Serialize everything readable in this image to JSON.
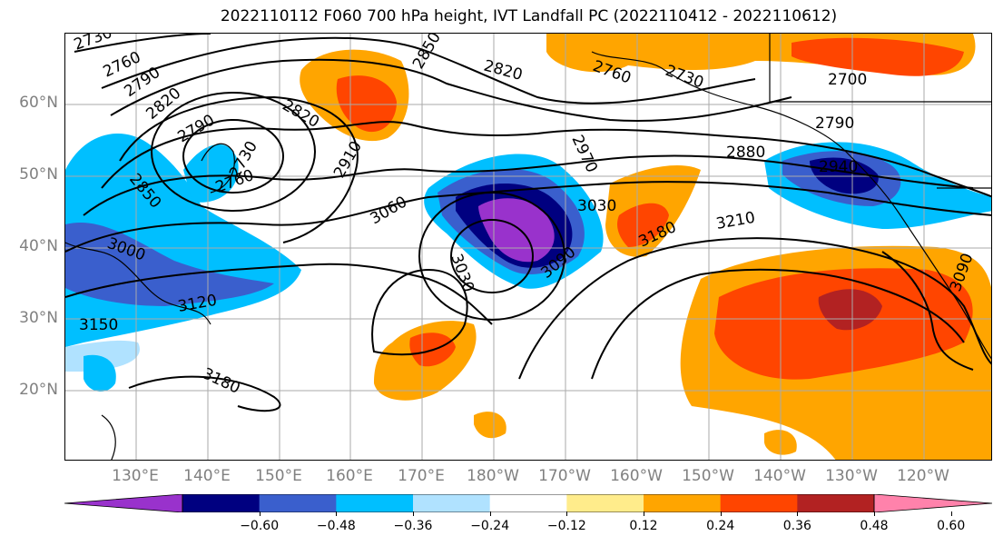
{
  "title": "2022110112 F060 700 hPa height, IVT Landfall PC (2022110412 - 2022110612)",
  "lat_labels": [
    "60°N",
    "50°N",
    "40°N",
    "30°N",
    "20°N"
  ],
  "lon_labels": [
    "130°E",
    "140°E",
    "150°E",
    "160°E",
    "170°E",
    "180°W",
    "170°W",
    "160°W",
    "150°W",
    "140°W",
    "130°W",
    "120°W"
  ],
  "contour_labels": [
    "2730",
    "2760",
    "2790",
    "2820",
    "2850",
    "2820",
    "2760",
    "2730",
    "2700",
    "2790",
    "2730",
    "2760",
    "2790",
    "2820",
    "2850",
    "2910",
    "2970",
    "2880",
    "2940",
    "3030",
    "3060",
    "3000",
    "3030",
    "3090",
    "3180",
    "3210",
    "3120",
    "3150",
    "3180",
    "3090"
  ],
  "colorbar": {
    "ticks": [
      "−0.60",
      "−0.48",
      "−0.36",
      "−0.24",
      "−0.12",
      "0.12",
      "0.24",
      "0.36",
      "0.48",
      "0.60"
    ],
    "colors": [
      "#9932CC",
      "#000080",
      "#3A5FCD",
      "#00BFFF",
      "#B0E2FF",
      "#FFFFFF",
      "#FFEC8B",
      "#FFA500",
      "#FF4500",
      "#B22222",
      "#FF82AB"
    ]
  }
}
